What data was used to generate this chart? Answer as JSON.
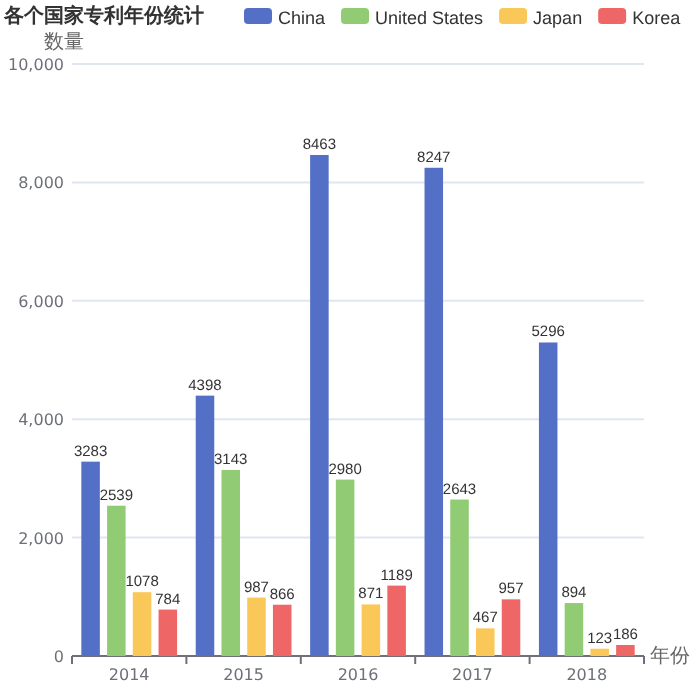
{
  "chart_data": {
    "type": "bar",
    "title": "各个国家专利年份统计",
    "ylabel": "数量",
    "xlabel": "年份",
    "categories": [
      "2014",
      "2015",
      "2016",
      "2017",
      "2018"
    ],
    "series": [
      {
        "name": "China",
        "color": "#5470c6",
        "values": [
          3283,
          4398,
          8463,
          8247,
          5296
        ]
      },
      {
        "name": "United States",
        "color": "#91cc75",
        "values": [
          2539,
          3143,
          2980,
          2643,
          894
        ]
      },
      {
        "name": "Japan",
        "color": "#fac858",
        "values": [
          1078,
          987,
          871,
          467,
          123
        ]
      },
      {
        "name": "Korea",
        "color": "#ee6666",
        "values": [
          784,
          866,
          1189,
          957,
          186
        ]
      }
    ],
    "ylim": [
      0,
      10000
    ],
    "yticks": [
      {
        "value": 0,
        "label": "0"
      },
      {
        "value": 2000,
        "label": "2,000"
      },
      {
        "value": 4000,
        "label": "4,000"
      },
      {
        "value": 6000,
        "label": "6,000"
      },
      {
        "value": 8000,
        "label": "8,000"
      },
      {
        "value": 10000,
        "label": "10,000"
      }
    ],
    "grid": "y",
    "legend": "top",
    "data_labels": true
  }
}
